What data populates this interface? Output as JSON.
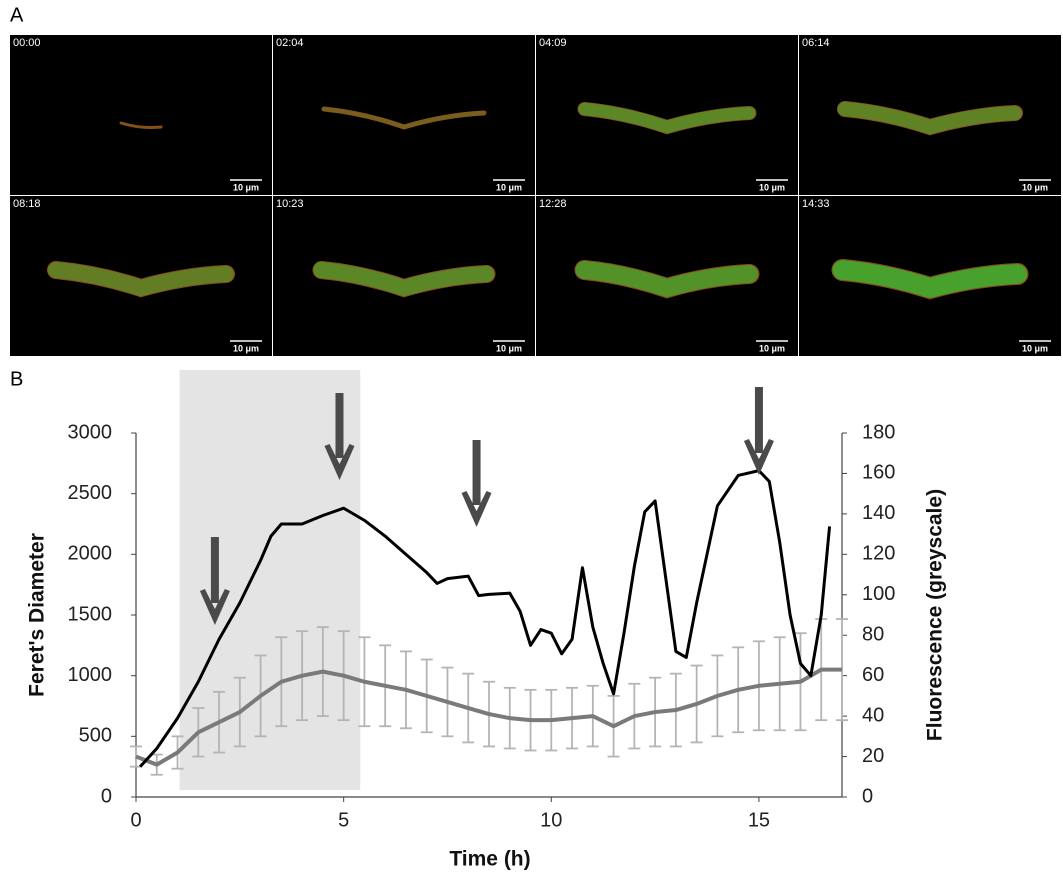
{
  "figure": {
    "label_a": "A",
    "label_b": "B",
    "frames": [
      {
        "time": "00:00",
        "scale": "10 μm"
      },
      {
        "time": "02:04",
        "scale": "10 μm"
      },
      {
        "time": "04:09",
        "scale": "10 μm"
      },
      {
        "time": "06:14",
        "scale": "10 μm"
      },
      {
        "time": "08:18",
        "scale": "10 μm"
      },
      {
        "time": "10:23",
        "scale": "10 μm"
      },
      {
        "time": "12:28",
        "scale": "10 μm"
      },
      {
        "time": "14:33",
        "scale": "10 μm"
      }
    ]
  },
  "chart_data": {
    "type": "line",
    "xlabel": "Time (h)",
    "ylabel": "Feret's Diameter",
    "y2label": "Fluorescence (greyscale)",
    "xlim": [
      0,
      17
    ],
    "xticks": [
      0,
      5,
      10,
      15
    ],
    "ylim": [
      0,
      3000
    ],
    "yticks": [
      0,
      500,
      1000,
      1500,
      2000,
      2500,
      3000
    ],
    "y2lim": [
      0,
      180
    ],
    "y2ticks": [
      0,
      20,
      40,
      60,
      80,
      100,
      120,
      140,
      160,
      180
    ],
    "shaded_region": {
      "x": [
        1.05,
        5.4
      ],
      "color": "#e4e4e4"
    },
    "arrows": {
      "x": [
        1.9,
        4.9,
        8.2,
        15.0
      ],
      "color": "#4a4a4a"
    },
    "series": [
      {
        "color": "#000000",
        "axis": "y",
        "x": [
          0.1,
          0.5,
          1,
          1.5,
          2,
          2.5,
          3,
          3.25,
          3.5,
          4,
          4.5,
          5,
          5.5,
          6,
          6.5,
          7,
          7.25,
          7.5,
          8,
          8.25,
          8.5,
          9,
          9.25,
          9.5,
          9.75,
          10,
          10.25,
          10.5,
          10.75,
          11,
          11.25,
          11.5,
          11.75,
          12,
          12.25,
          12.5,
          13,
          13.25,
          13.5,
          14,
          14.5,
          15,
          15.25,
          15.5,
          15.75,
          16,
          16.25,
          16.5,
          16.7
        ],
        "values": [
          250,
          400,
          650,
          950,
          1300,
          1600,
          1950,
          2150,
          2250,
          2250,
          2320,
          2380,
          2280,
          2150,
          2000,
          1850,
          1760,
          1800,
          1820,
          1660,
          1670,
          1680,
          1530,
          1250,
          1380,
          1350,
          1180,
          1300,
          1890,
          1400,
          1100,
          850,
          1350,
          1900,
          2350,
          2440,
          1200,
          1150,
          1600,
          2400,
          2650,
          2690,
          2600,
          2100,
          1500,
          1100,
          1000,
          1500,
          2230
        ]
      },
      {
        "color": "#7a7a7a",
        "error_color": "#b4b4b4",
        "axis": "y2",
        "x": [
          0,
          0.5,
          1,
          1.5,
          2,
          2.5,
          3,
          3.5,
          4,
          4.5,
          5,
          5.5,
          6,
          6.5,
          7,
          7.5,
          8,
          8.5,
          9,
          9.5,
          10,
          10.5,
          11,
          11.5,
          12,
          12.5,
          13,
          13.5,
          14,
          14.5,
          15,
          15.5,
          16,
          16.5,
          17
        ],
        "values": [
          20,
          16,
          22,
          32,
          37,
          42,
          50,
          57,
          60,
          62,
          60,
          57,
          55,
          53,
          50,
          47,
          44,
          41,
          39,
          38,
          38,
          39,
          40,
          35,
          40,
          42,
          43,
          46,
          50,
          53,
          55,
          56,
          57,
          63,
          63
        ],
        "errors": [
          5,
          5,
          8,
          12,
          15,
          17,
          20,
          22,
          22,
          22,
          22,
          22,
          20,
          19,
          18,
          17,
          17,
          16,
          15,
          15,
          15,
          15,
          15,
          15,
          16,
          17,
          18,
          19,
          20,
          21,
          22,
          23,
          24,
          25,
          25
        ]
      }
    ]
  }
}
